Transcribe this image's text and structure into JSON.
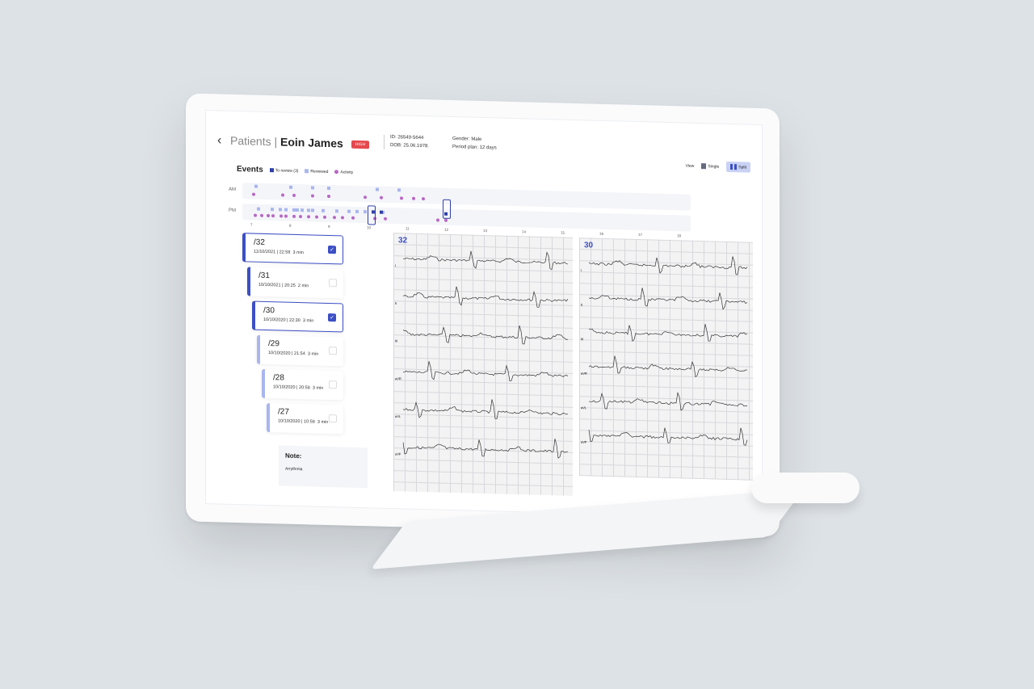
{
  "header": {
    "back_icon": "chevron-left-icon",
    "section": "Patients",
    "separator": "|",
    "patient_name": "Eoin James",
    "badge": "HIGH",
    "badge_color": "#e5484d",
    "id": "ID: 26549-5644",
    "dob": "DOB: 25.06.1978.",
    "gender": "Gender: Male",
    "period": "Period plan: 12 days"
  },
  "view": {
    "label": "View",
    "single": "Single",
    "split": "Split",
    "active": "Split"
  },
  "events": {
    "title": "Events",
    "legend": [
      {
        "label": "To review (3)",
        "color": "#2f3fa8"
      },
      {
        "label": "Reviewed",
        "color": "#a9b6ef"
      },
      {
        "label": "Activity",
        "color": "#b867c6"
      }
    ]
  },
  "timeline": {
    "rows": [
      "AM",
      "PM"
    ],
    "ticks": [
      "7",
      "8",
      "9",
      "10",
      "11",
      "12",
      "13",
      "14",
      "15",
      "16",
      "17",
      "18"
    ]
  },
  "event_list": [
    {
      "id": "/32",
      "date": "11/10/2021",
      "time": "22:58",
      "duration": "3 min",
      "checked": true,
      "status": "to_review"
    },
    {
      "id": "/31",
      "date": "10/10/2021",
      "time": "20:25",
      "duration": "2 min",
      "checked": false,
      "status": "to_review"
    },
    {
      "id": "/30",
      "date": "10/10/2020",
      "time": "22:30",
      "duration": "3 min",
      "checked": true,
      "status": "to_review"
    },
    {
      "id": "/29",
      "date": "10/10/2020",
      "time": "21:54",
      "duration": "3 min",
      "checked": false,
      "status": "reviewed"
    },
    {
      "id": "/28",
      "date": "10/10/2020",
      "time": "20:58",
      "duration": "3 min",
      "checked": false,
      "status": "reviewed"
    },
    {
      "id": "/27",
      "date": "10/10/2020",
      "time": "10:58",
      "duration": "3 min",
      "checked": false,
      "status": "reviewed"
    }
  ],
  "note": {
    "title": "Note:",
    "text": "Arrythmia"
  },
  "ecg_panels": [
    {
      "label": "32"
    },
    {
      "label": "30"
    }
  ],
  "leads": [
    "I",
    "II",
    "III",
    "aVR",
    "aVL",
    "aVF"
  ]
}
